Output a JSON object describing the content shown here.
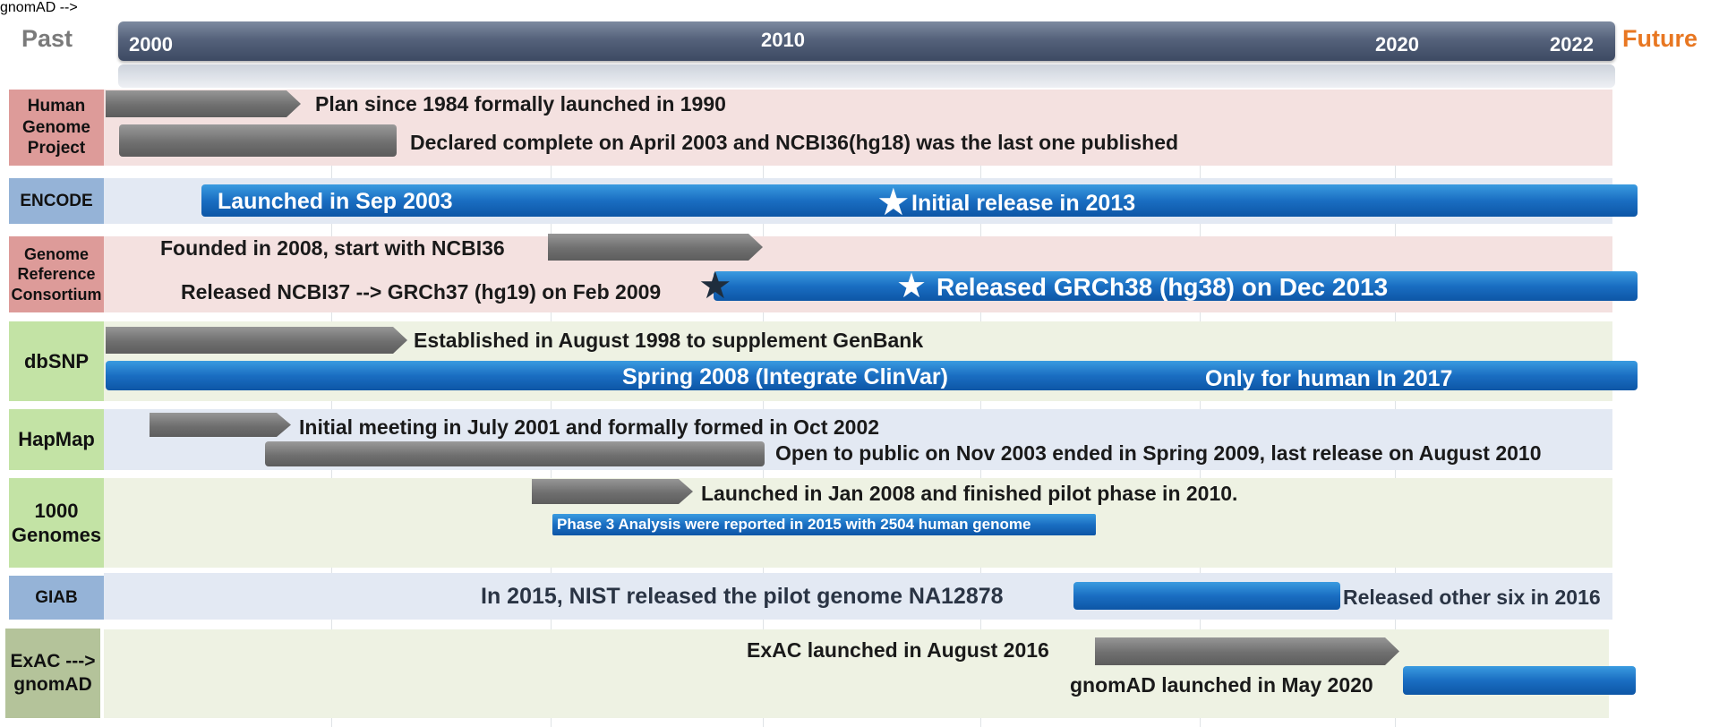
{
  "header": {
    "past": "Past",
    "future": "Future",
    "years": [
      "2000",
      "2010",
      "2020",
      "2022"
    ]
  },
  "rows": {
    "hgp": {
      "label": "Human Genome Project",
      "events": [
        "Plan since 1984 formally launched in 1990",
        "Declared complete on April 2003 and NCBI36(hg18) was the last one published"
      ]
    },
    "encode": {
      "label": "ENCODE",
      "events": [
        "Launched in Sep 2003",
        "Initial release in 2013"
      ]
    },
    "grc": {
      "label": "Genome Reference Consortium",
      "events": [
        "Founded in 2008, start with NCBI36",
        "Released NCBI37 --> GRCh37 (hg19) on Feb 2009",
        "Released GRCh38 (hg38) on Dec 2013"
      ]
    },
    "dbsnp": {
      "label": "dbSNP",
      "events": [
        "Established in August 1998 to supplement GenBank",
        "Spring 2008 (Integrate ClinVar)",
        "Only for human In 2017"
      ]
    },
    "hapmap": {
      "label": "HapMap",
      "events": [
        "Initial meeting in July 2001 and formally formed in Oct 2002",
        "Open to public on Nov 2003 ended in Spring 2009, last release on August 2010"
      ]
    },
    "kg": {
      "label": "1000 Genomes",
      "events": [
        "Launched in Jan 2008 and finished pilot phase in 2010.",
        "Phase 3 Analysis were reported in 2015 with 2504 human genome"
      ]
    },
    "giab": {
      "label": "GIAB",
      "events": [
        "In 2015, NIST released the pilot genome NA12878",
        "Released other six in 2016"
      ]
    },
    "exac": {
      "label": "ExAC ---> gnomAD",
      "events": [
        "ExAC launched in August 2016",
        "gnomAD launched in May 2020"
      ]
    }
  },
  "colors": {
    "label_pink": "#dd9b99",
    "label_blue": "#95b3d7",
    "label_green": "#c3e3a5",
    "label_darkgreen": "#b4c39a",
    "bar_blue": "#1a6ec2",
    "arrow_gray": "#707070",
    "future_orange": "#e87722"
  }
}
